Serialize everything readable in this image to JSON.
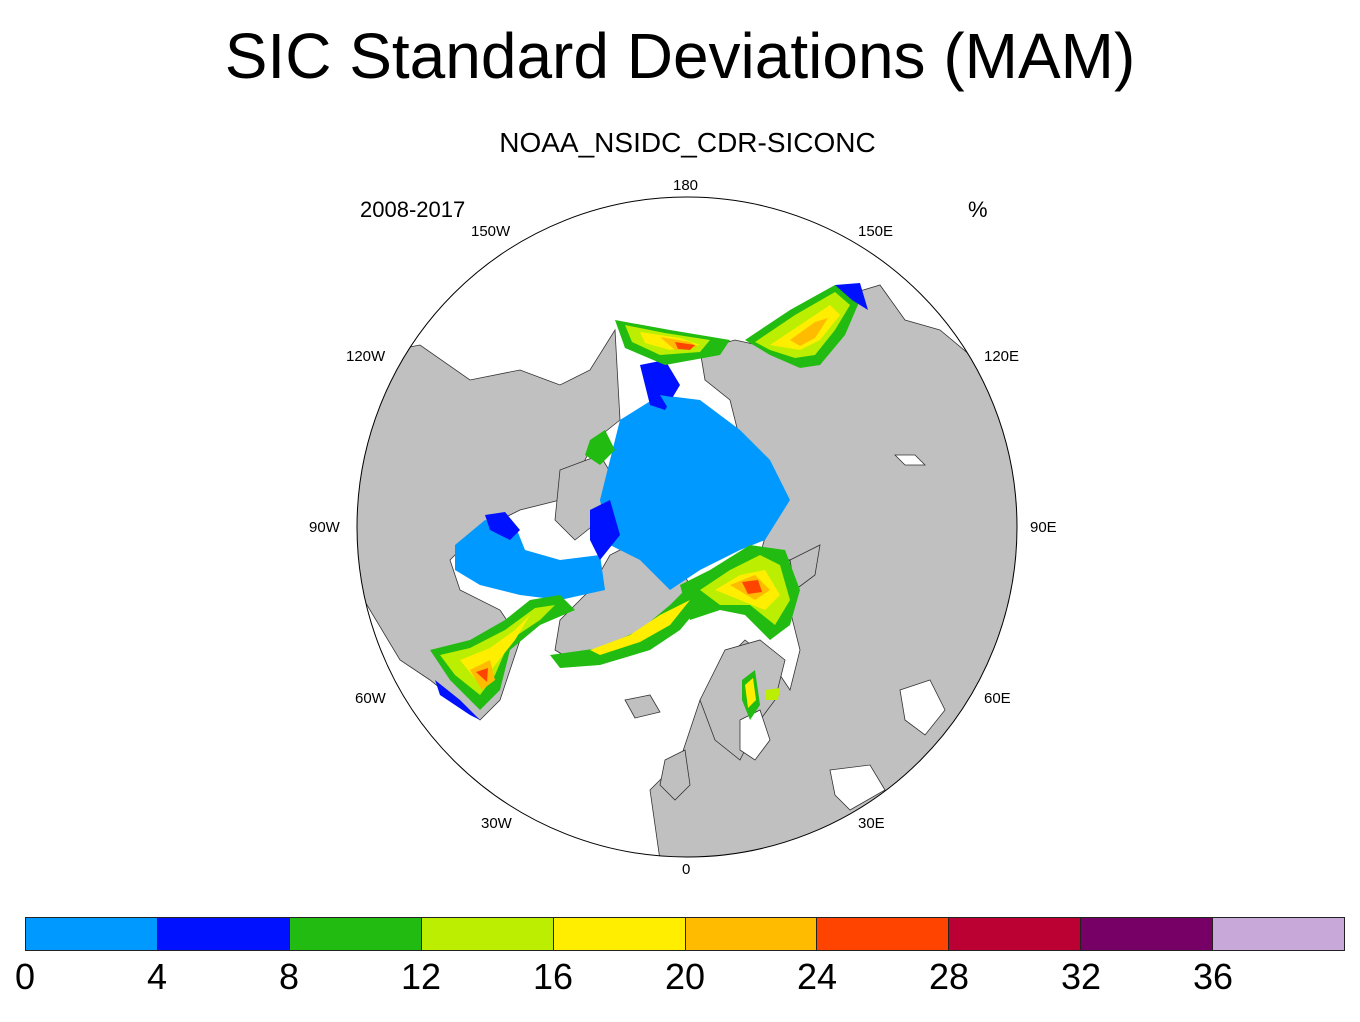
{
  "title": "SIC Standard Deviations (MAM)",
  "subtitle": "NOAA_NSIDC_CDR-SICONC",
  "period": "2008-2017",
  "units": "%",
  "longitude_labels": [
    "180",
    "150E",
    "120E",
    "90E",
    "60E",
    "30E",
    "0",
    "30W",
    "60W",
    "90W",
    "120W",
    "150W"
  ],
  "map": {
    "projection": "north-polar-stereographic",
    "land_color": "#c0c0c0",
    "ocean_color": "#ffffff"
  },
  "colorbar": {
    "colors": [
      "#0099ff",
      "#0011ff",
      "#22bb11",
      "#bbee00",
      "#ffee00",
      "#ffbb00",
      "#ff4400",
      "#bb0033",
      "#770066",
      "#c8a8d8"
    ],
    "labels": [
      "0",
      "4",
      "8",
      "12",
      "16",
      "20",
      "24",
      "28",
      "32",
      "36"
    ]
  }
}
